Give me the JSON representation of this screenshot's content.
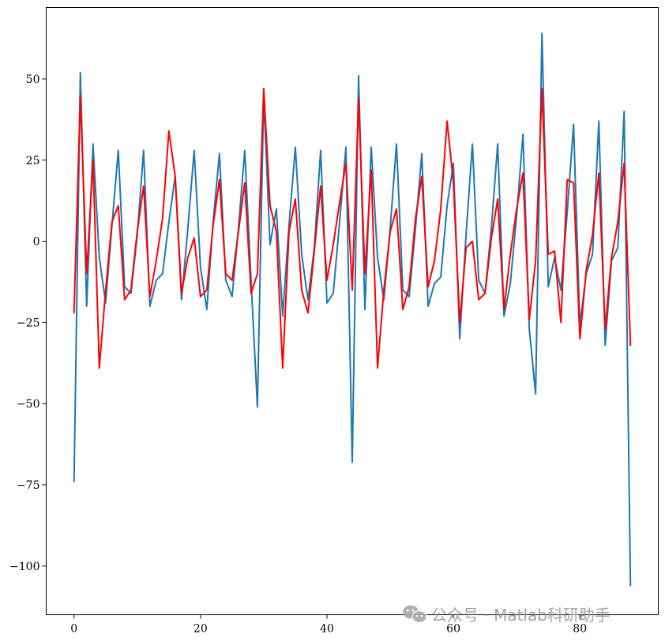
{
  "chart_data": {
    "type": "line",
    "title": "",
    "xlabel": "",
    "ylabel": "",
    "xlim": [
      -4.4,
      92.4
    ],
    "ylim": [
      -115,
      72
    ],
    "grid": false,
    "x_ticks": [
      0,
      20,
      40,
      60,
      80
    ],
    "y_ticks": [
      -100,
      -75,
      -50,
      -25,
      0,
      25,
      50
    ],
    "series": [
      {
        "color": "#1f77b4",
        "values": [
          -74,
          52,
          -20,
          30,
          -5,
          -19,
          5,
          28,
          -14,
          -16,
          2,
          28,
          -20,
          -12,
          -10,
          6,
          20,
          -18,
          4,
          28,
          -8,
          -21,
          6,
          27,
          -12,
          -17,
          4,
          28,
          -12,
          -51,
          45,
          -1,
          10,
          -23,
          5,
          29,
          -4,
          -18,
          -2,
          28,
          -19,
          -16,
          6,
          29,
          -68,
          51,
          -21,
          29,
          -5,
          -18,
          4,
          30,
          -15,
          -17,
          4,
          27,
          -20,
          -13,
          -11,
          11,
          24,
          -30,
          2,
          30,
          -12,
          -16,
          4,
          30,
          -23,
          -13,
          8,
          33,
          -27,
          -47,
          64,
          -14,
          -5,
          -15,
          9,
          36,
          -26,
          -10,
          -4,
          37,
          -32,
          -6,
          -2,
          40,
          -106
        ]
      },
      {
        "color": "#ff0000",
        "values": [
          -22,
          45,
          -10,
          25,
          -39,
          -15,
          6,
          11,
          -18,
          -15,
          3,
          17,
          -17,
          -6,
          7,
          34,
          20,
          -16,
          -5,
          1,
          -17,
          -15,
          5,
          19,
          -10,
          -12,
          3,
          18,
          -16,
          -10,
          47,
          11,
          3,
          -39,
          3,
          13,
          -15,
          -22,
          -3,
          17,
          -12,
          -1,
          12,
          24,
          -15,
          44,
          -10,
          22,
          -39,
          -15,
          3,
          10,
          -21,
          -14,
          7,
          20,
          -14,
          -6,
          10,
          37,
          18,
          -25,
          -2,
          0,
          -18,
          -16,
          1,
          13,
          -21,
          -4,
          10,
          21,
          -24,
          -6,
          47,
          -4,
          -3,
          -25,
          19,
          18,
          -30,
          -9,
          2,
          21,
          -27,
          -5,
          6,
          24,
          -32
        ]
      }
    ]
  },
  "watermark": {
    "text": "公众号 · Matlab科研助手",
    "icon": "wechat-icon"
  }
}
